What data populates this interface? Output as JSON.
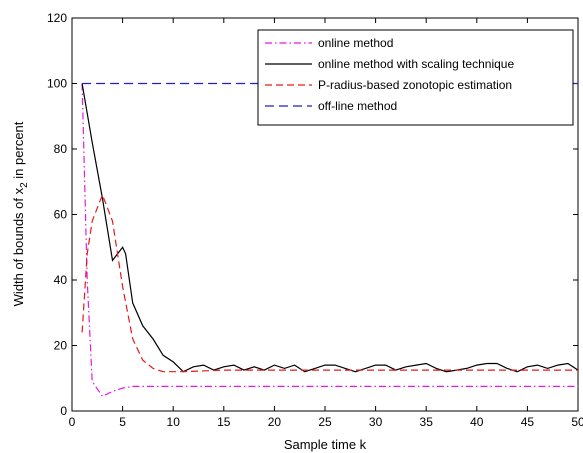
{
  "chart_data": {
    "type": "line",
    "xlabel": "Sample time k",
    "ylabel_main": "Width of bounds  of x",
    "ylabel_sub": "2",
    "ylabel_tail": " in percent",
    "xlim": [
      0,
      50
    ],
    "ylim": [
      0,
      120
    ],
    "xticks": [
      0,
      5,
      10,
      15,
      20,
      25,
      30,
      35,
      40,
      45,
      50
    ],
    "yticks": [
      0,
      20,
      40,
      60,
      80,
      100,
      120
    ],
    "grid": false,
    "legend_position": "top-right",
    "series": [
      {
        "name": "online method",
        "color": "#e619e6",
        "dash": "dashdot",
        "x": [
          1,
          1.5,
          2,
          3,
          4,
          5,
          6,
          7,
          8,
          9,
          10,
          15,
          20,
          25,
          30,
          35,
          40,
          45,
          50
        ],
        "y": [
          100,
          40,
          9,
          4.5,
          6,
          7,
          7.5,
          7.5,
          7.5,
          7.5,
          7.5,
          7.5,
          7.5,
          7.5,
          7.5,
          7.5,
          7.5,
          7.5,
          7.5
        ]
      },
      {
        "name": "online method with scaling technique",
        "color": "#000000",
        "dash": "solid",
        "x": [
          1,
          2,
          3,
          4,
          5,
          5.3,
          6,
          7,
          8,
          9,
          10,
          11,
          12,
          13,
          14,
          15,
          16,
          17,
          18,
          19,
          20,
          21,
          22,
          23,
          24,
          25,
          26,
          27,
          28,
          29,
          30,
          31,
          32,
          33,
          34,
          35,
          36,
          37,
          38,
          39,
          40,
          41,
          42,
          43,
          44,
          45,
          46,
          47,
          48,
          49,
          50
        ],
        "y": [
          100,
          82,
          65,
          46,
          50,
          48,
          33,
          26,
          22,
          17,
          15,
          12,
          13.5,
          14,
          12.5,
          13.5,
          14,
          12.5,
          13.5,
          12.5,
          14,
          13,
          14,
          12,
          13,
          14,
          14,
          13,
          12,
          13,
          14,
          14,
          12.5,
          13.5,
          14,
          14.5,
          13,
          12,
          12.5,
          13,
          14,
          14.5,
          14.5,
          13,
          12,
          13.5,
          14,
          13,
          14,
          14.5,
          12.5
        ]
      },
      {
        "name": "P-radius-based zonotopic estimation",
        "color": "#e61919",
        "dash": "dash",
        "x": [
          1,
          1.5,
          2,
          3,
          4,
          5,
          6,
          7,
          8,
          9,
          10,
          11,
          15,
          20,
          25,
          30,
          35,
          40,
          45,
          50
        ],
        "y": [
          24,
          48,
          58,
          66,
          58,
          38,
          22,
          15.5,
          13,
          12,
          12,
          12,
          12.5,
          12.5,
          12.5,
          12.5,
          12.5,
          12.5,
          12.5,
          12.5
        ]
      },
      {
        "name": "off-line method",
        "color": "#1f1fcc",
        "dash": "longdash",
        "x": [
          1,
          1.5,
          2,
          10,
          20,
          30,
          40,
          50
        ],
        "y": [
          100,
          100,
          100,
          100,
          100,
          100,
          100,
          100
        ]
      }
    ]
  }
}
